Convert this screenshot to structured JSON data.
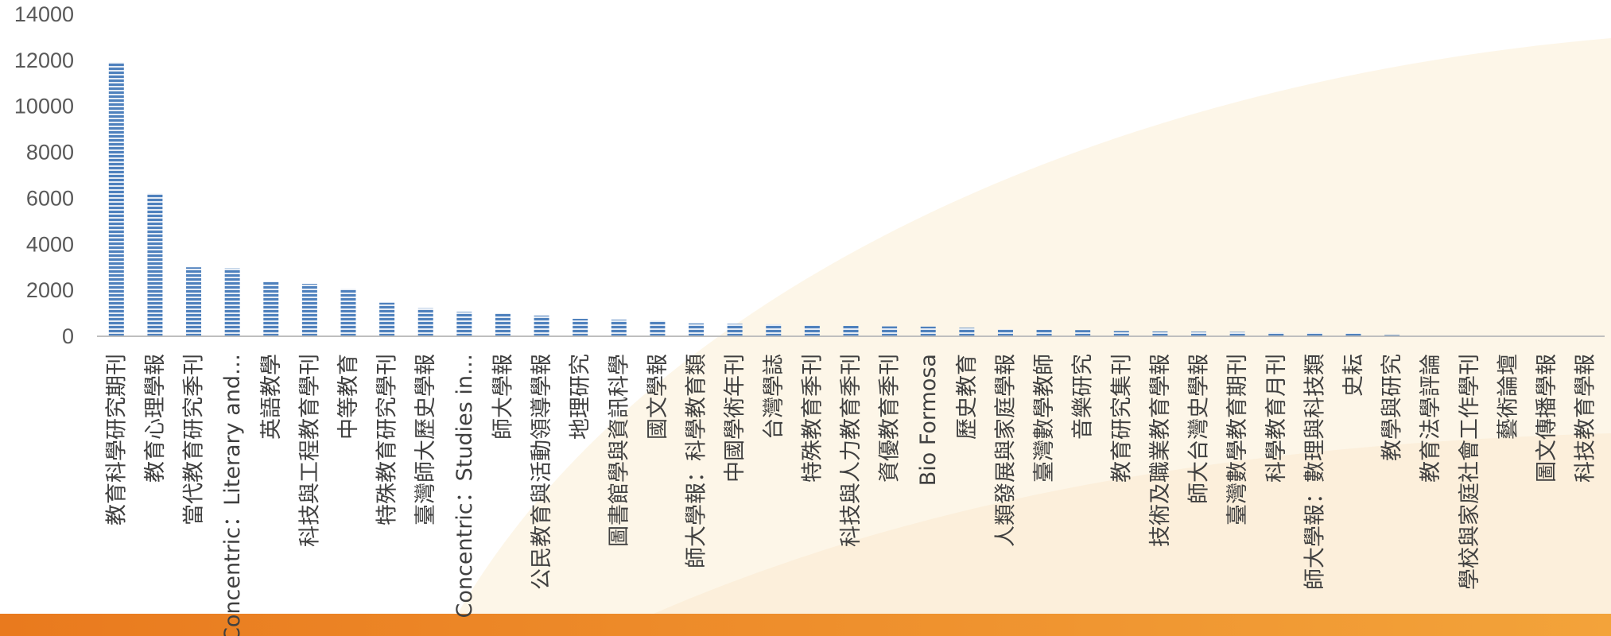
{
  "chart_data": {
    "type": "bar",
    "title": "",
    "xlabel": "",
    "ylabel": "",
    "ylim": [
      0,
      14000
    ],
    "yticks": [
      0,
      2000,
      4000,
      6000,
      8000,
      10000,
      12000,
      14000
    ],
    "grid": false,
    "legend": "none",
    "bar_fill": "horizontal-stripe",
    "colors": {
      "bar": "#4f81bd",
      "bar_stripe": "#ffffff",
      "axis": "#bfbfbf",
      "band_start": "#e97a1e",
      "band_end": "#f3a33a",
      "background_curve": "#fdf4e4"
    },
    "categories": [
      "教育科學研究期刊",
      "教育心理學報",
      "當代教育研究季刊",
      "Concentric：Literary and…",
      "英語教學",
      "科技與工程教育學刊",
      "中等教育",
      "特殊教育研究學刊",
      "臺灣師大歷史學報",
      "Concentric：Studies in…",
      "師大學報",
      "公民教育與活動領導學報",
      "地理研究",
      "圖書館學與資訊科學",
      "國文學報",
      "師大學報：科學教育類",
      "中國學術年刊",
      "台灣學誌",
      "特殊教育季刊",
      "科技與人力教育季刊",
      "資優教育季刊",
      "Bio Formosa",
      "歷史教育",
      "人類發展與家庭學報",
      "臺灣數學教師",
      "音樂研究",
      "教育研究集刊",
      "技術及職業教育學報",
      "師大台灣史學報",
      "臺灣數學教育期刊",
      "科學教育月刊",
      "師大學報：數理與科技類",
      "史耘",
      "教學與研究",
      "教育法學評論",
      "學校與家庭社會工作學刊",
      "藝術論壇",
      "圖文傳播學報",
      "科技教育學報"
    ],
    "values": [
      11900,
      6200,
      3000,
      2950,
      2380,
      2280,
      2060,
      1460,
      1220,
      1060,
      1000,
      900,
      760,
      720,
      680,
      560,
      540,
      520,
      470,
      450,
      430,
      420,
      370,
      310,
      290,
      270,
      230,
      210,
      200,
      190,
      160,
      150,
      130,
      60,
      20,
      15,
      10,
      5,
      5
    ]
  }
}
